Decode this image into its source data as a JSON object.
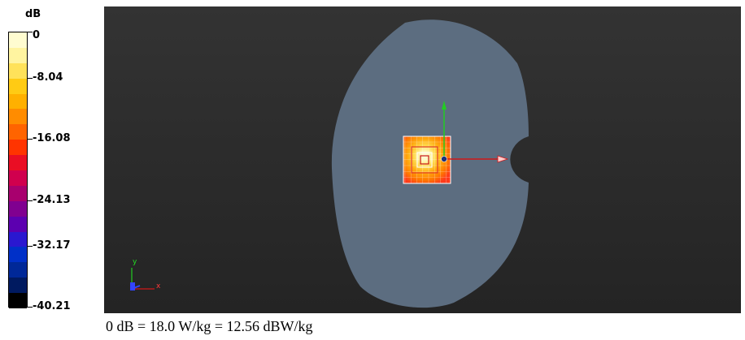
{
  "colorbar": {
    "unit": "dB",
    "ticks": [
      "0",
      "-8.04",
      "-16.08",
      "-24.13",
      "-32.17",
      "-40.21"
    ],
    "colors": [
      "#fffcd0",
      "#fff4a0",
      "#ffe25a",
      "#ffcb14",
      "#ffb000",
      "#ff8c00",
      "#ff6400",
      "#ff3400",
      "#ea0e24",
      "#d0004e",
      "#a8006e",
      "#800090",
      "#5c00b0",
      "#2a18d0",
      "#0030c8",
      "#002898",
      "#001a60",
      "#000000"
    ]
  },
  "scene": {
    "axes_labels": {
      "x": "x",
      "y": "y"
    },
    "phantom_color": "#5c6d80",
    "background_color": "#2b2b2b"
  },
  "footer": {
    "caption": "0 dB = 18.0 W/kg = 12.56 dBW/kg"
  }
}
